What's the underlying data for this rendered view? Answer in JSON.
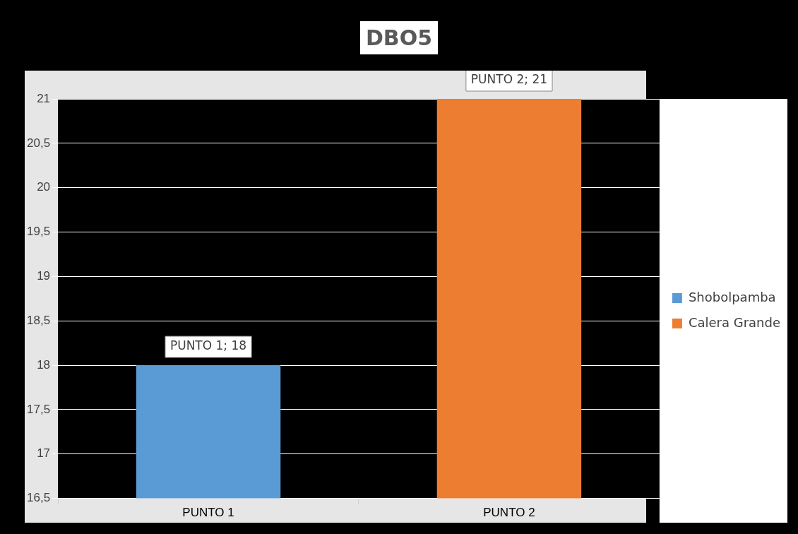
{
  "chart_data": {
    "type": "bar",
    "title": "DBO5",
    "categories": [
      "PUNTO 1",
      "PUNTO 2"
    ],
    "series": [
      {
        "name": "Shobolpamba",
        "color": "#5b9bd5",
        "values": [
          18,
          null
        ],
        "value_labels": [
          "PUNTO 1; 18",
          null
        ]
      },
      {
        "name": "Calera Grande",
        "color": "#ed7d31",
        "values": [
          null,
          21
        ],
        "value_labels": [
          null,
          "PUNTO 2; 21"
        ]
      }
    ],
    "ylim": [
      16.5,
      21
    ],
    "yticks": [
      {
        "value": 16.5,
        "label": "16,5"
      },
      17,
      {
        "value": 17.5,
        "label": "17,5"
      },
      18,
      {
        "value": 18.5,
        "label": "18,5"
      },
      19,
      {
        "value": 19.5,
        "label": "19,5"
      },
      20,
      {
        "value": 20.5,
        "label": "20,5"
      },
      21
    ],
    "grid": true,
    "legend": "right"
  }
}
